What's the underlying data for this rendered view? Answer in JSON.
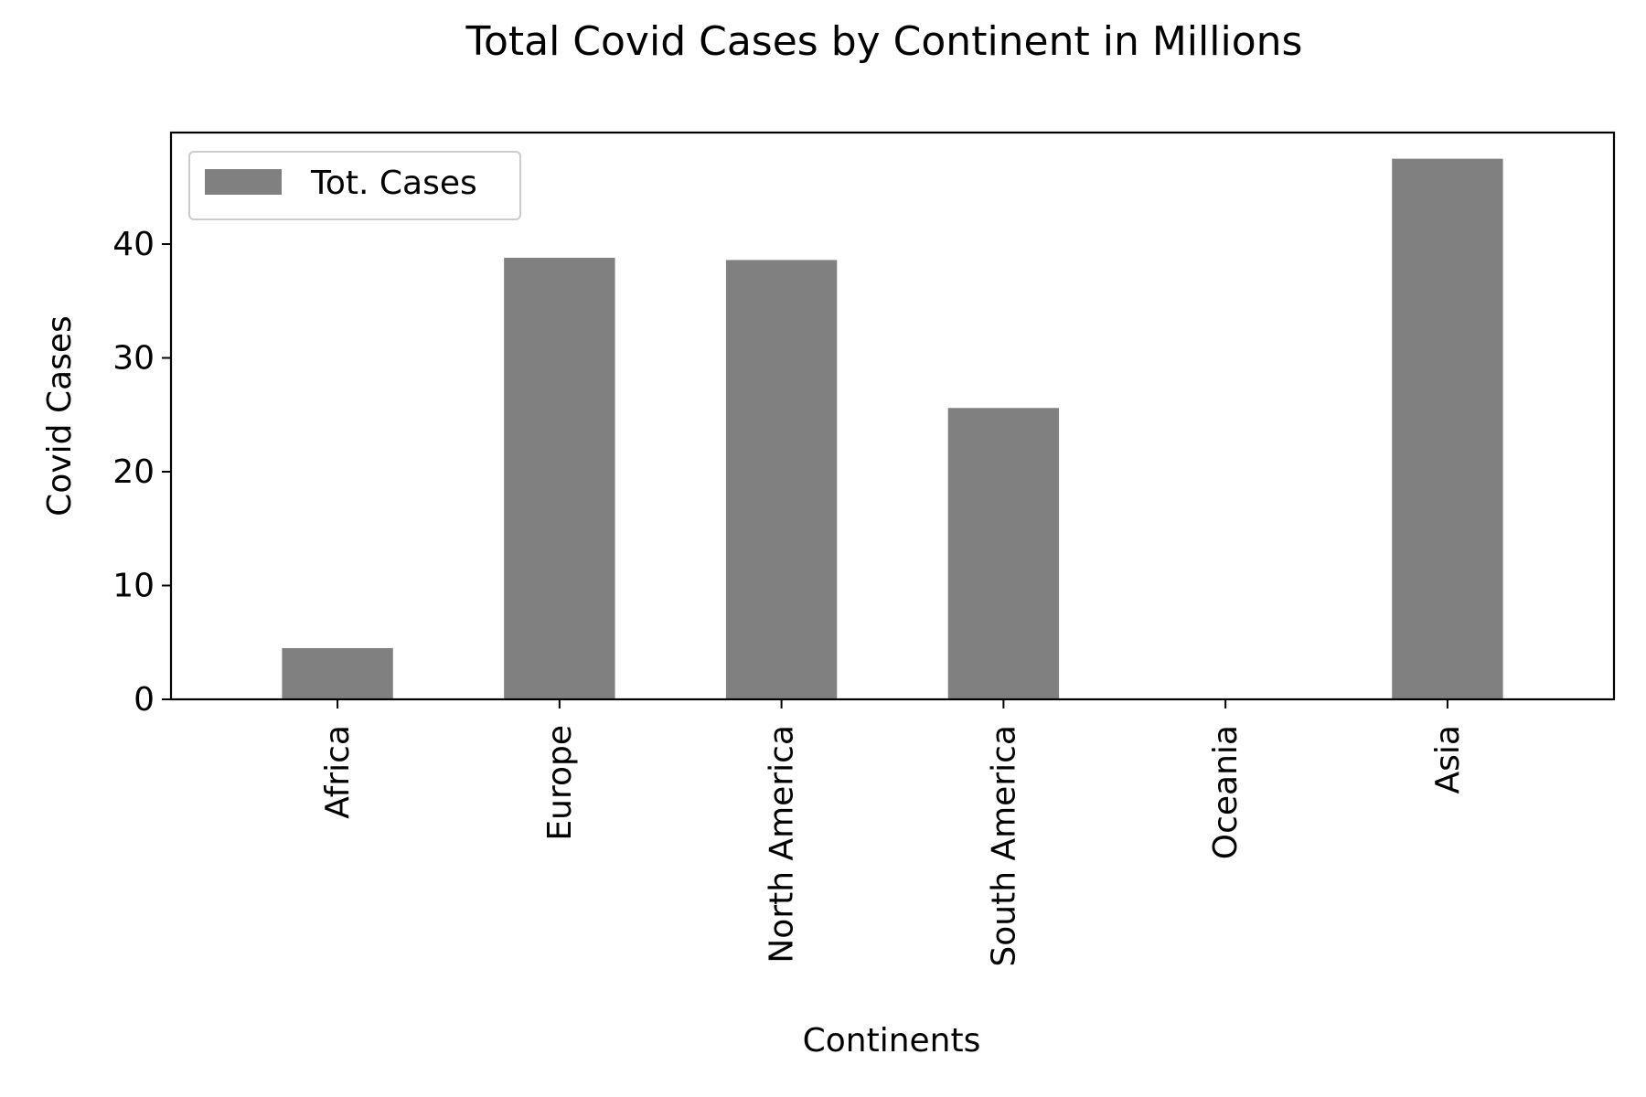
{
  "chart_data": {
    "type": "bar",
    "title": "Total Covid Cases by Continent in Millions",
    "xlabel": "Continents",
    "ylabel": "Covid Cases",
    "categories": [
      "Africa",
      "Europe",
      "North America",
      "South America",
      "Oceania",
      "Asia"
    ],
    "series": [
      {
        "name": "Tot. Cases",
        "values": [
          4.5,
          38.8,
          38.6,
          25.6,
          0.05,
          47.5
        ],
        "color": "#808080"
      }
    ],
    "ylim": [
      0,
      49.8
    ],
    "yticks": [
      0,
      10,
      20,
      30,
      40
    ],
    "grid": false,
    "legend_position": "upper left"
  }
}
